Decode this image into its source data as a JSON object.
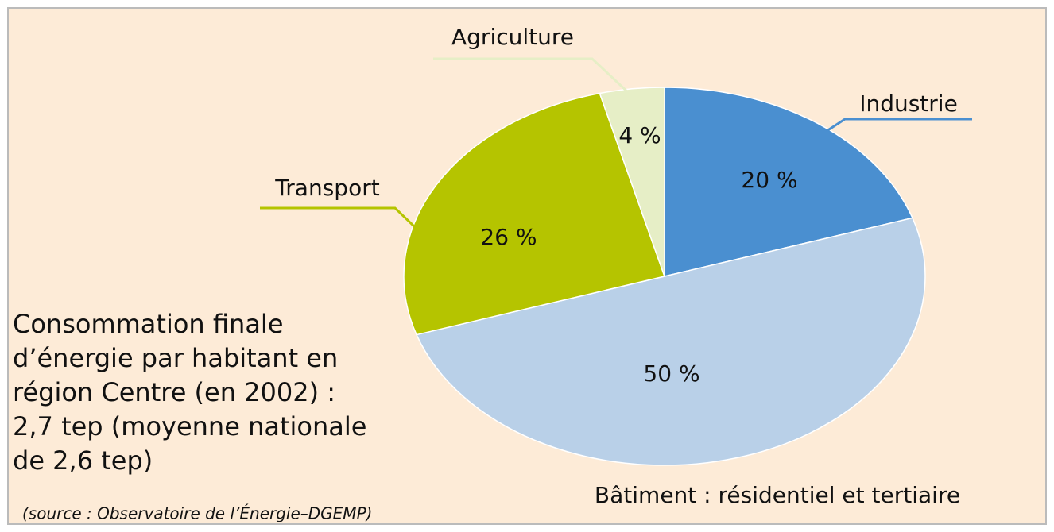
{
  "chart_data": {
    "type": "pie",
    "categories": [
      "Industrie",
      "Bâtiment : résidentiel et tertiaire",
      "Transport",
      "Agriculture"
    ],
    "values": [
      20,
      50,
      26,
      4
    ],
    "value_labels": [
      "20 %",
      "50 %",
      "26 %",
      "4 %"
    ],
    "colors": [
      "#4a8fd0",
      "#b9d0e8",
      "#b5c400",
      "#e6eec6"
    ],
    "annotations": [
      "Consommation finale",
      "d’énergie par habitant en",
      "région Centre (en 2002) :",
      "2,7 tep (moyenne nationale",
      "de 2,6 tep)"
    ],
    "source": "(source : Observatoire de l’Énergie–DGEMP)"
  }
}
